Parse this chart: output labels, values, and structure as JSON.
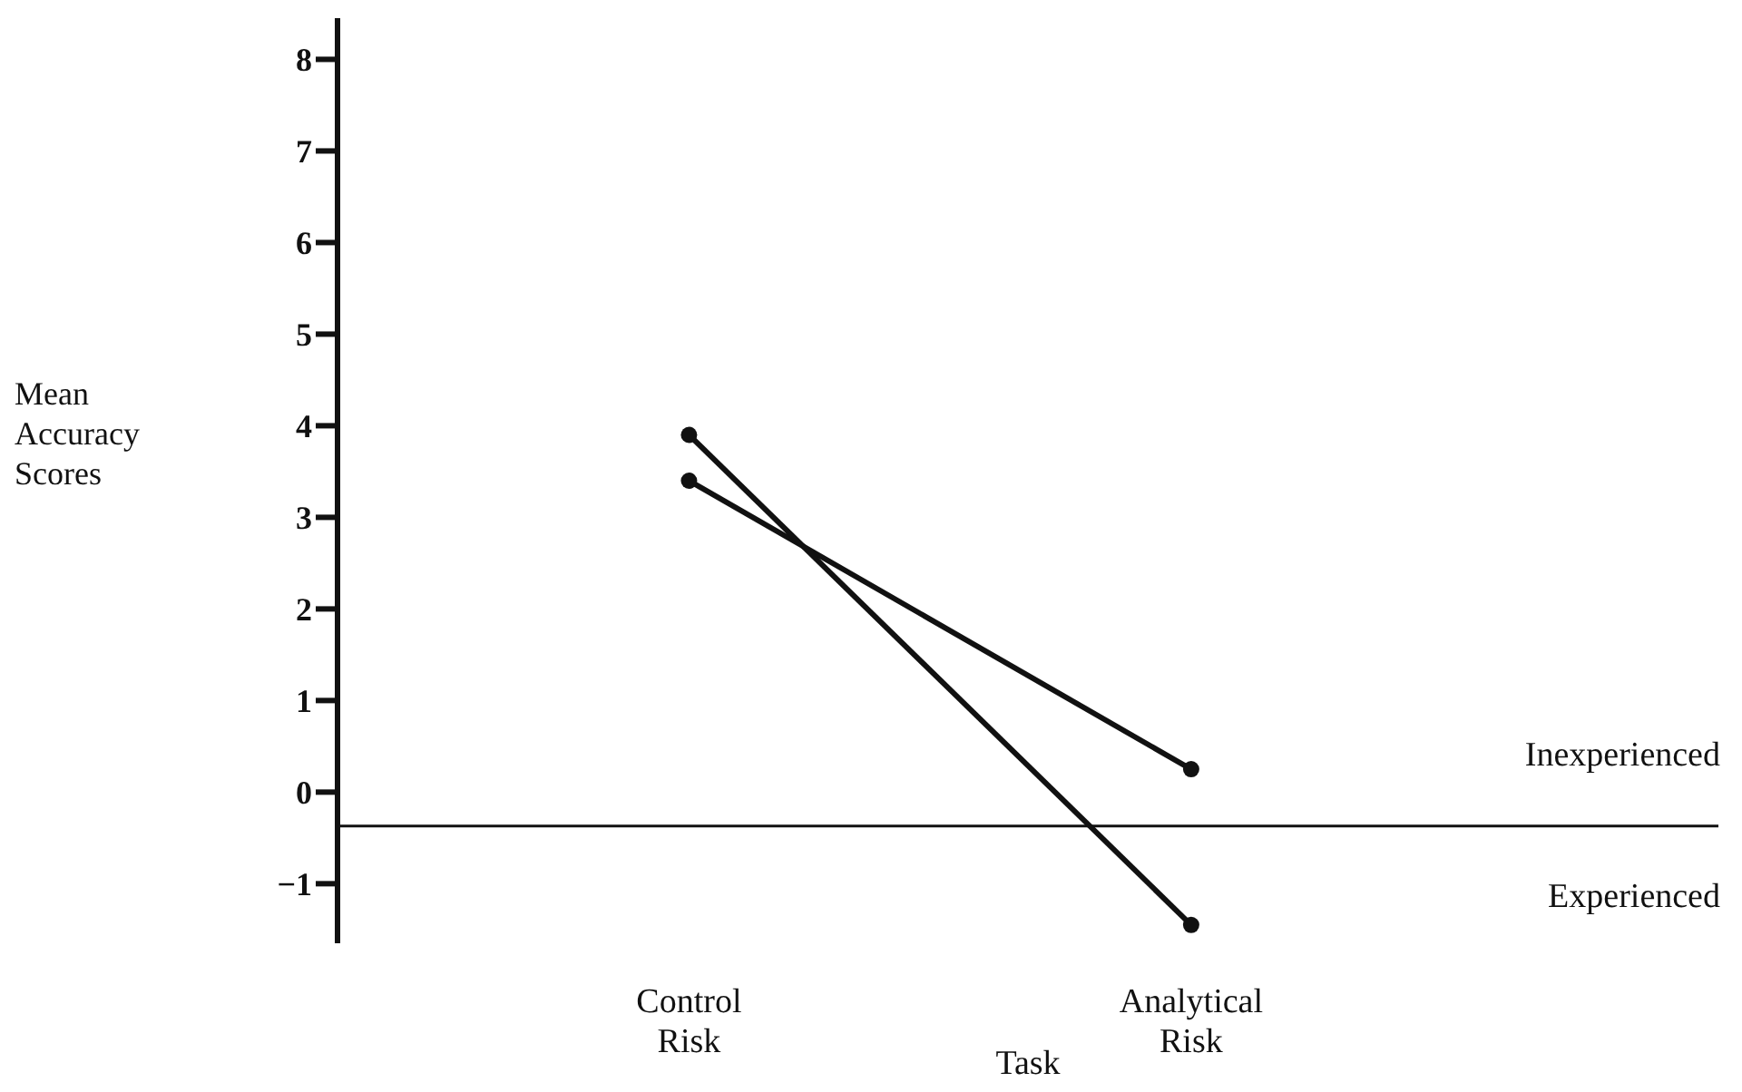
{
  "chart_data": {
    "type": "line",
    "xlabel": "Task",
    "ylabel": "Mean Accuracy Scores",
    "categories": [
      "Control Risk",
      "Analytical Risk"
    ],
    "series": [
      {
        "name": "Inexperienced",
        "color": "#111111",
        "values": [
          3.4,
          0.25
        ]
      },
      {
        "name": "Experienced",
        "color": "#111111",
        "values": [
          3.9,
          -1.45
        ]
      }
    ],
    "ylim": [
      -1.65,
      8.45
    ],
    "yticks": [
      -1,
      0,
      1,
      2,
      3,
      4,
      5,
      6,
      7,
      8
    ],
    "ref_lines": [
      {
        "axis": "y",
        "value": -0.37,
        "color": "#111111"
      }
    ],
    "grid": false,
    "legend": false,
    "marker": "circle",
    "line_style": "solid"
  }
}
